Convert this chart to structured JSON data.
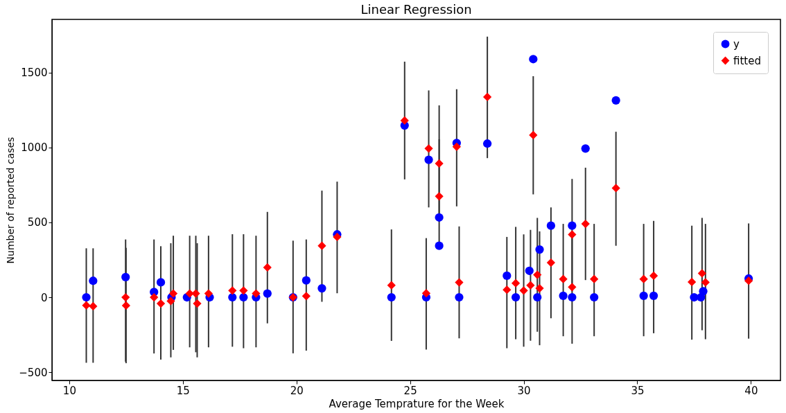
{
  "chart_data": {
    "type": "scatter",
    "title": "Linear Regression",
    "xlabel": "Average Temprature for the Week",
    "ylabel": "Number of reported cases",
    "xlim": [
      9.24,
      41.3
    ],
    "ylim": [
      -555,
      1855
    ],
    "xticks": [
      10,
      15,
      20,
      25,
      30,
      35,
      40
    ],
    "yticks": [
      {
        "value": -500,
        "label": "−500"
      },
      0,
      500,
      1000,
      1500
    ],
    "legend": "top right",
    "grid": false,
    "series": [
      {
        "name": "y",
        "color": "#0000ff",
        "marker": "circle",
        "x": [
          10.75,
          11.05,
          12.48,
          13.73,
          14.03,
          14.5,
          15.18,
          16.18,
          17.18,
          17.67,
          18.22,
          18.72,
          19.85,
          20.43,
          21.12,
          21.79,
          24.18,
          24.76,
          25.71,
          25.82,
          26.28,
          26.28,
          27.05,
          27.16,
          28.4,
          29.26,
          29.65,
          30.0,
          30.25,
          30.42,
          30.6,
          30.7,
          31.2,
          31.74,
          32.13,
          32.13,
          32.72,
          33.1,
          34.06,
          35.28,
          35.72,
          37.5,
          37.8,
          37.9,
          39.9
        ],
        "values": [
          0,
          110,
          135,
          35,
          100,
          0,
          0,
          0,
          0,
          0,
          0,
          25,
          0,
          113,
          60,
          420,
          0,
          1147,
          0,
          918,
          533,
          344,
          1030,
          0,
          1026,
          144,
          0,
          null,
          177,
          1590,
          0,
          319,
          478,
          10,
          478,
          0,
          993,
          0,
          1314,
          10,
          10,
          0,
          0,
          40,
          125
        ]
      },
      {
        "name": "fitted",
        "color": "#ff0000",
        "marker": "diamond",
        "x": [
          10.75,
          11.05,
          12.48,
          12.5,
          13.73,
          14.03,
          14.47,
          14.58,
          15.3,
          15.57,
          15.63,
          16.13,
          17.18,
          17.67,
          18.22,
          18.72,
          19.85,
          20.43,
          21.12,
          21.79,
          24.18,
          24.76,
          25.71,
          25.82,
          26.28,
          26.28,
          27.05,
          27.16,
          28.4,
          29.26,
          29.65,
          30.0,
          30.3,
          30.42,
          30.6,
          30.7,
          31.2,
          31.74,
          32.13,
          32.13,
          32.72,
          33.1,
          34.06,
          35.28,
          35.72,
          37.4,
          37.85,
          38.0,
          39.9
        ],
        "values": [
          -54,
          -60,
          0,
          -55,
          0,
          -42,
          -25,
          25,
          25,
          25,
          -42,
          25,
          45,
          45,
          25,
          199,
          0,
          8,
          344,
          403,
          80,
          1180,
          27,
          993,
          893,
          674,
          1005,
          99,
          1337,
          50,
          94,
          45,
          80,
          1083,
          150,
          60,
          231,
          122,
          419,
          68,
          490,
          122,
          729,
          122,
          144,
          102,
          160,
          100,
          110
        ],
        "errors": [
          [
            -437,
            327
          ],
          [
            -437,
            327
          ],
          [
            -430,
            386
          ],
          [
            -440,
            330
          ],
          [
            -375,
            386
          ],
          [
            -416,
            341
          ],
          [
            -401,
            361
          ],
          [
            -351,
            411
          ],
          [
            -334,
            411
          ],
          [
            -367,
            411
          ],
          [
            -401,
            361
          ],
          [
            -334,
            411
          ],
          [
            -330,
            421
          ],
          [
            -340,
            421
          ],
          [
            -334,
            411
          ],
          [
            -174,
            570
          ],
          [
            -374,
            378
          ],
          [
            -356,
            386
          ],
          [
            -30,
            712
          ],
          [
            27,
            772
          ],
          [
            -291,
            453
          ],
          [
            787,
            1573
          ],
          [
            -349,
            395
          ],
          [
            600,
            1381
          ],
          [
            505,
            1281
          ],
          [
            336,
            1055
          ],
          [
            607,
            1389
          ],
          [
            -274,
            473
          ],
          [
            929,
            1740
          ],
          [
            -340,
            403
          ],
          [
            -280,
            470
          ],
          [
            -330,
            420
          ],
          [
            -290,
            450
          ],
          [
            687,
            1476
          ],
          [
            -230,
            530
          ],
          [
            -320,
            440
          ],
          [
            -140,
            600
          ],
          [
            -260,
            490
          ],
          [
            40,
            790
          ],
          [
            -310,
            440
          ],
          [
            115,
            865
          ],
          [
            -260,
            490
          ],
          [
            344,
            1105
          ],
          [
            -260,
            490
          ],
          [
            -240,
            510
          ],
          [
            -283,
            478
          ],
          [
            -220,
            530
          ],
          [
            -280,
            490
          ],
          [
            -276,
            493
          ]
        ]
      }
    ]
  }
}
